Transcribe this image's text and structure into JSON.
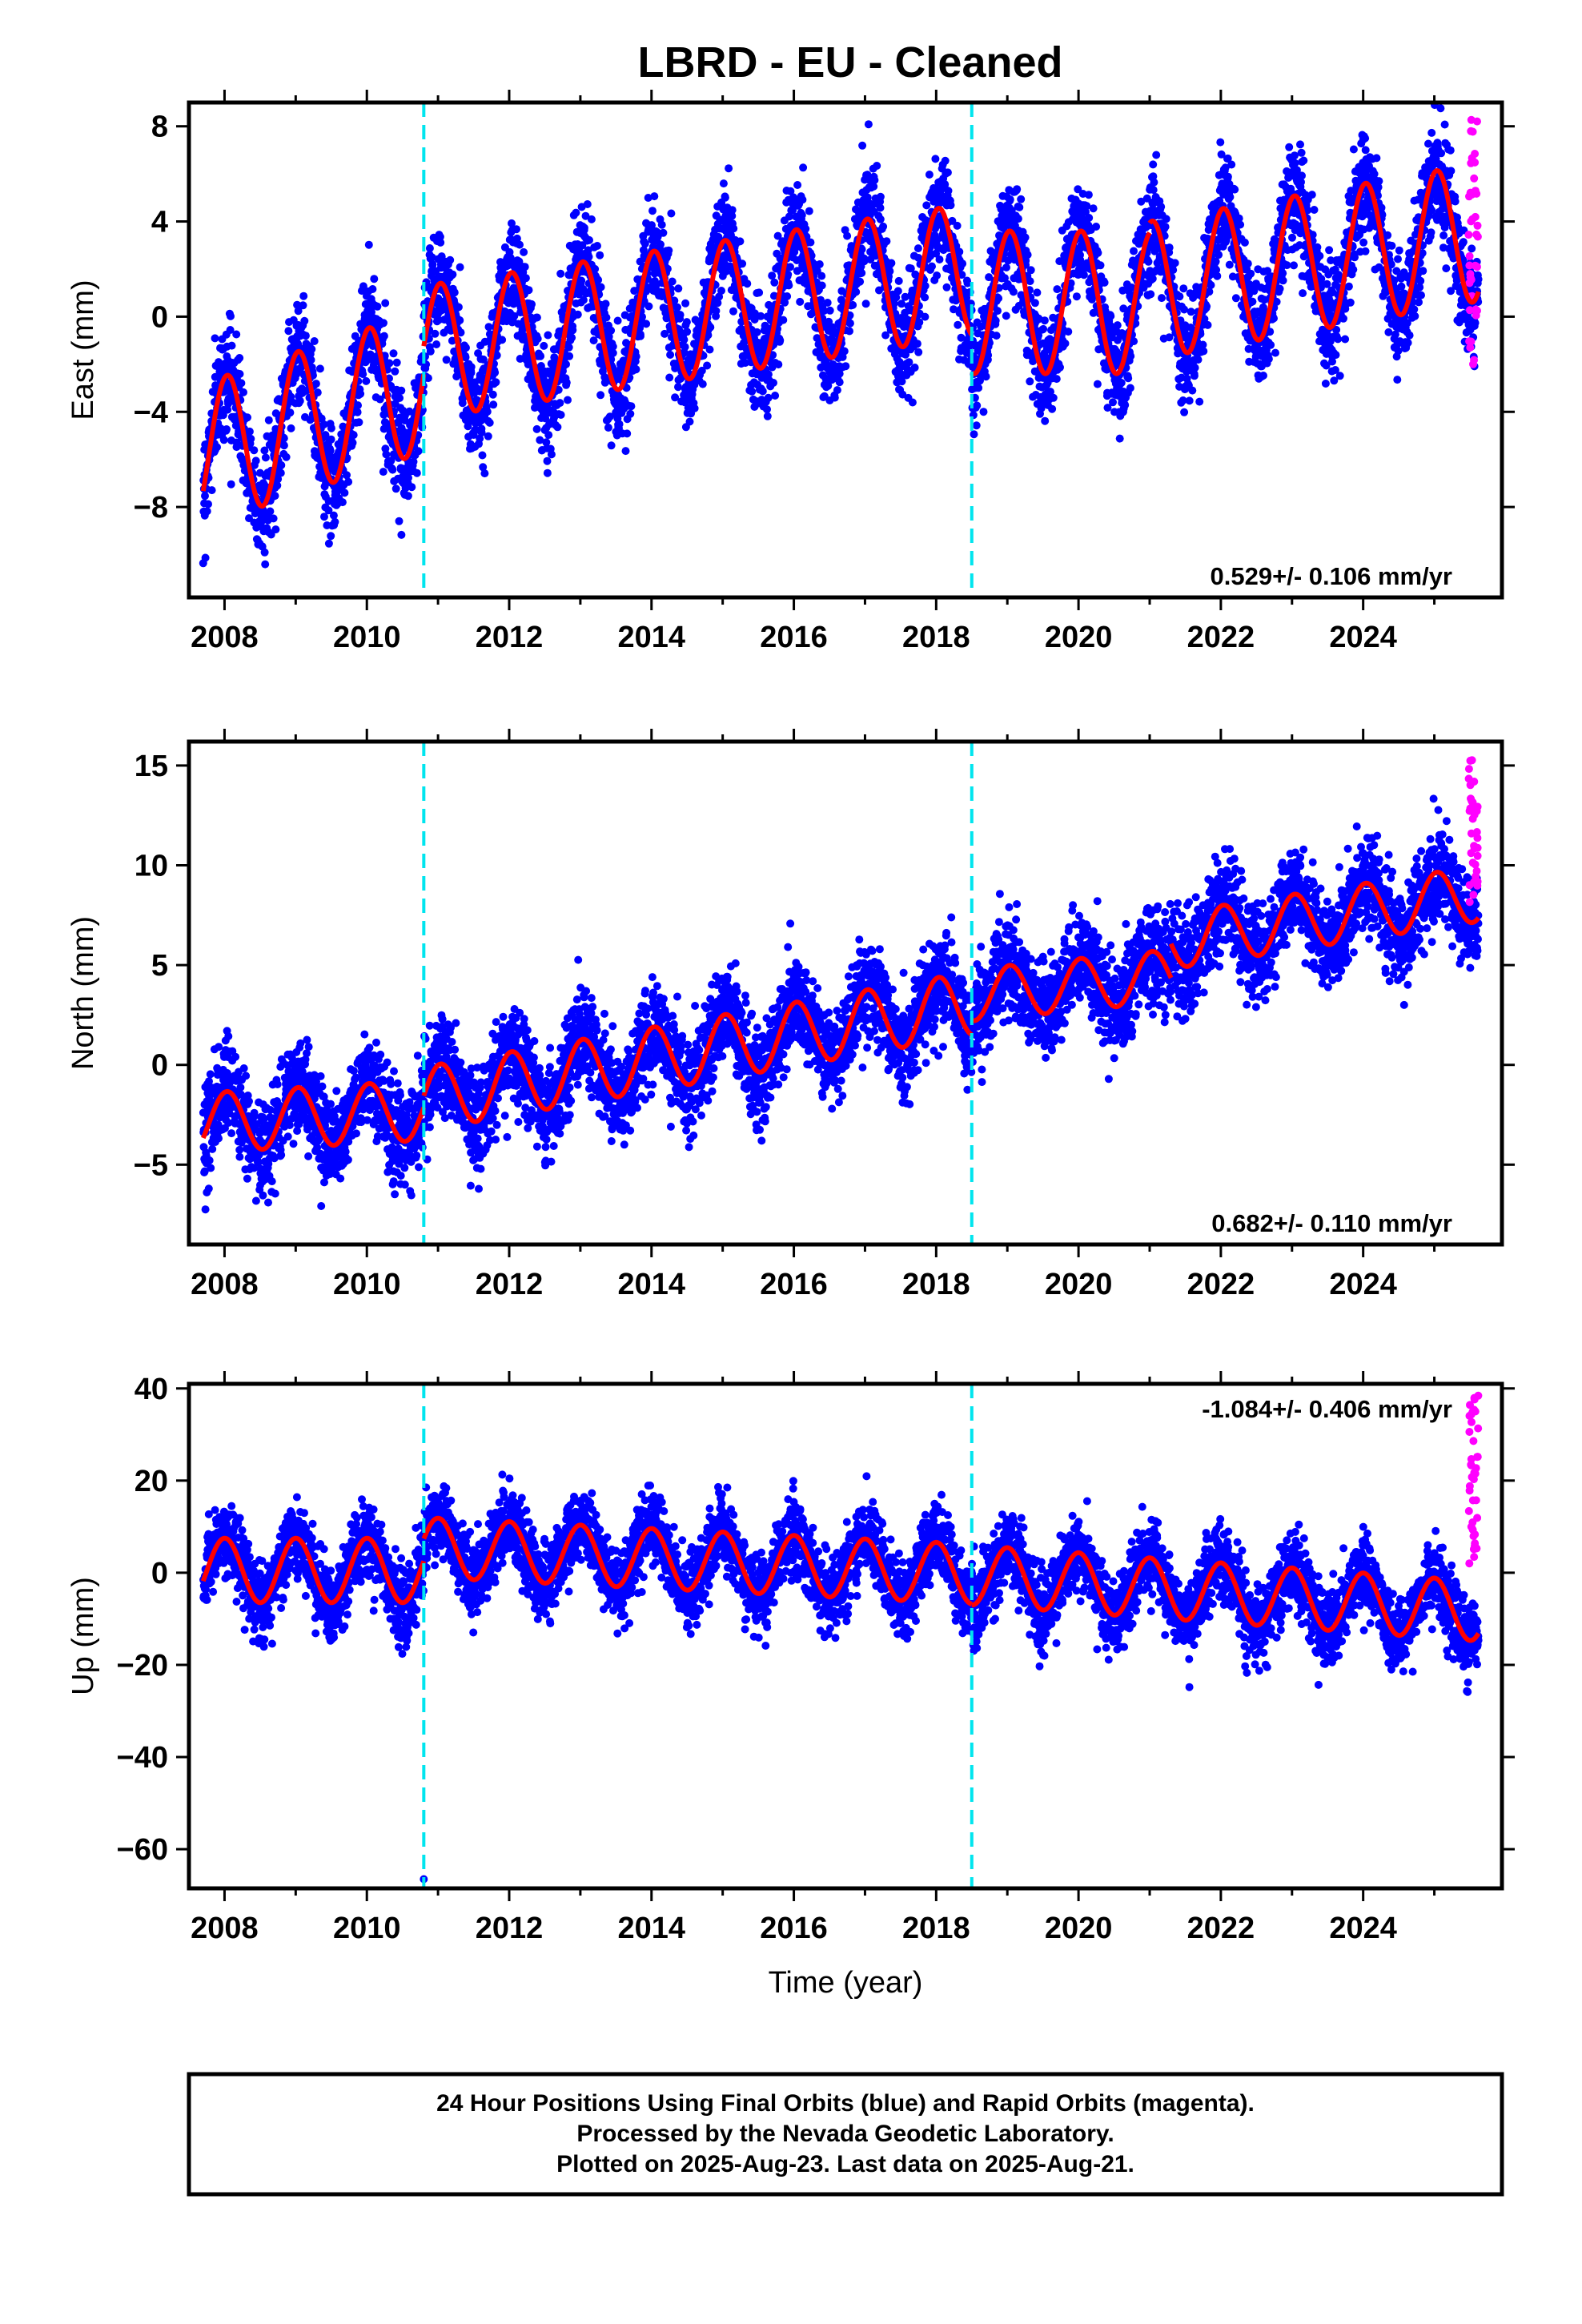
{
  "title": "LBRD  - EU - Cleaned",
  "footer": {
    "line1": "24 Hour Positions Using Final Orbits (blue) and Rapid Orbits (magenta).",
    "line2": "Processed by the Nevada Geodetic Laboratory.",
    "line3": "Plotted on 2025-Aug-23. Last data on 2025-Aug-21."
  },
  "colors": {
    "final_orbits": "#0000ff",
    "rapid_orbits": "#ff00ff",
    "model_fit": "#ff0000",
    "equipment_change": "#00e5ee",
    "frame": "#000000"
  },
  "chart_data": [
    {
      "type": "scatter",
      "panel": "east",
      "ylabel": "East (mm)",
      "xlabel": "",
      "xlim": [
        2007.5,
        2025.95
      ],
      "ylim": [
        -11.8,
        9.0
      ],
      "xticks": [
        "2008",
        "2010",
        "2012",
        "2014",
        "2016",
        "2018",
        "2020",
        "2022",
        "2024"
      ],
      "yticks": [
        "8",
        "4",
        "0",
        "-4",
        "-8"
      ],
      "ytick_values": [
        8,
        4,
        0,
        -4,
        -8
      ],
      "grid": false,
      "rate_label": "0.529+/- 0.106 mm/yr",
      "rate_position": "bottom-right",
      "equipment_changes": [
        2010.8,
        2018.5
      ],
      "segments": [
        {
          "start": 2007.7,
          "end": 2010.8,
          "offset": -5.8,
          "trend": 1.0,
          "amplitude": 3.0,
          "phase": 1.35
        },
        {
          "start": 2010.8,
          "end": 2018.5,
          "offset": -1.5,
          "trend": 0.45,
          "amplitude": 2.8,
          "phase": 1.35
        },
        {
          "start": 2018.5,
          "end": 2021.0,
          "offset": 0.6,
          "trend": 0.0,
          "amplitude": 3.0,
          "phase": 1.35
        },
        {
          "start": 2021.0,
          "end": 2025.62,
          "offset": 1.1,
          "trend": 0.53,
          "amplitude": 2.9,
          "phase": 1.35
        }
      ],
      "noise_sd": 1.1,
      "rapid_orbits": {
        "x_start": 2025.48,
        "x_end": 2025.62,
        "y_range": [
          -2.0,
          8.3
        ]
      }
    },
    {
      "type": "scatter",
      "panel": "north",
      "ylabel": "North (mm)",
      "xlabel": "",
      "xlim": [
        2007.5,
        2025.95
      ],
      "ylim": [
        -9.0,
        16.2
      ],
      "xticks": [
        "2008",
        "2010",
        "2012",
        "2014",
        "2016",
        "2018",
        "2020",
        "2022",
        "2024"
      ],
      "yticks": [
        "15",
        "10",
        "5",
        "0",
        "-5"
      ],
      "ytick_values": [
        15,
        10,
        5,
        0,
        -5
      ],
      "grid": false,
      "rate_label": "0.682+/- 0.110 mm/yr",
      "rate_position": "bottom-right",
      "equipment_changes": [
        2010.8,
        2018.5
      ],
      "segments": [
        {
          "start": 2007.7,
          "end": 2010.8,
          "offset": -2.9,
          "trend": 0.2,
          "amplitude": 1.5,
          "phase": 1.35
        },
        {
          "start": 2010.8,
          "end": 2018.5,
          "offset": -1.7,
          "trend": 0.62,
          "amplitude": 1.6,
          "phase": 1.35
        },
        {
          "start": 2018.5,
          "end": 2021.3,
          "offset": 3.5,
          "trend": 0.35,
          "amplitude": 1.3,
          "phase": 1.35
        },
        {
          "start": 2021.3,
          "end": 2025.62,
          "offset": 6.2,
          "trend": 0.55,
          "amplitude": 1.4,
          "phase": 1.35
        }
      ],
      "noise_sd": 1.2,
      "rapid_orbits": {
        "x_start": 2025.48,
        "x_end": 2025.62,
        "y_range": [
          8.0,
          15.6
        ]
      }
    },
    {
      "type": "scatter",
      "panel": "up",
      "ylabel": "Up (mm)",
      "xlabel": "Time (year)",
      "xlim": [
        2007.5,
        2025.95
      ],
      "ylim": [
        -68.5,
        41.0
      ],
      "xticks": [
        "2008",
        "2010",
        "2012",
        "2014",
        "2016",
        "2018",
        "2020",
        "2022",
        "2024"
      ],
      "yticks": [
        "40",
        "20",
        "0",
        "-20",
        "-40",
        "-60"
      ],
      "ytick_values": [
        40,
        20,
        0,
        -20,
        -40,
        -60
      ],
      "grid": false,
      "rate_label": "-1.084+/- 0.406 mm/yr",
      "rate_position": "top-right",
      "equipment_changes": [
        2010.8,
        2018.5
      ],
      "segments": [
        {
          "start": 2007.7,
          "end": 2010.8,
          "offset": 0.5,
          "trend": 0.0,
          "amplitude": 7.0,
          "phase": 1.55
        },
        {
          "start": 2010.8,
          "end": 2018.5,
          "offset": 5.5,
          "trend": -0.75,
          "amplitude": 6.5,
          "phase": 1.55
        },
        {
          "start": 2018.5,
          "end": 2025.62,
          "offset": -0.5,
          "trend": -1.1,
          "amplitude": 6.5,
          "phase": 1.55
        }
      ],
      "noise_sd": 4.0,
      "outliers": [
        {
          "x": 2010.8,
          "y": -66.5
        }
      ],
      "rapid_orbits": {
        "x_start": 2025.48,
        "x_end": 2025.62,
        "y_range": [
          2.0,
          38.5
        ]
      }
    }
  ]
}
